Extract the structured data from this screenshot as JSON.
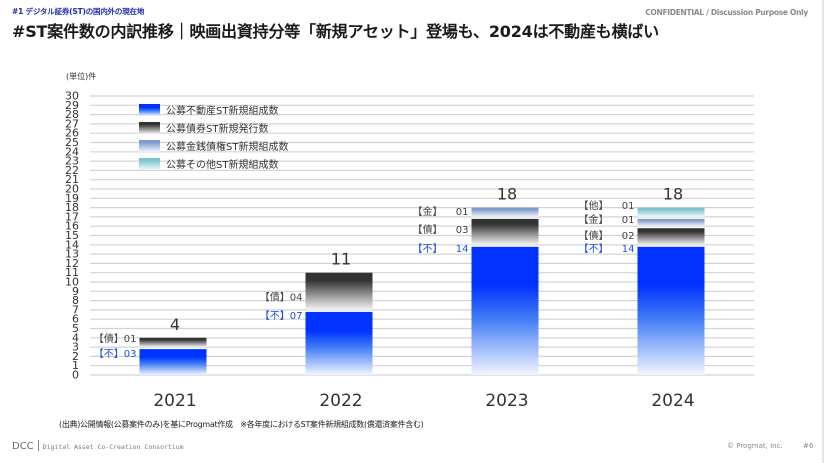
{
  "header": {
    "section_label": "#1 デジタル証券(ST)の国内外の現在地",
    "confidential": "CONFIDENTIAL / Discussion Purpose Only",
    "title": "#ST案件数の内訳推移｜映画出資持分等「新規アセット」登場も、2024は不動産も横ばい"
  },
  "chart_data": {
    "type": "bar",
    "stacked": true,
    "title": "",
    "ylabel": "(単位)件",
    "xlabel": "",
    "ylim": [
      0,
      30
    ],
    "yticks": [
      0,
      1,
      2,
      3,
      4,
      5,
      6,
      7,
      8,
      9,
      10,
      11,
      12,
      13,
      14,
      15,
      16,
      17,
      18,
      19,
      20,
      21,
      22,
      23,
      24,
      25,
      26,
      27,
      28,
      29,
      30
    ],
    "grid": true,
    "legend_position": "top-left",
    "categories": [
      "2021",
      "2022",
      "2023",
      "2024"
    ],
    "totals": [
      4,
      11,
      18,
      18
    ],
    "series": [
      {
        "name": "公募不動産ST新規組成数",
        "short": "【不】",
        "values": [
          3,
          7,
          14,
          14
        ],
        "labels": [
          "03",
          "07",
          "14",
          "14"
        ],
        "color_top": "#0033ff",
        "color_bottom": "#f2f5ff",
        "label_color": "#1f4fe0"
      },
      {
        "name": "公募債券ST新規発行数",
        "short": "【債】",
        "values": [
          1,
          4,
          3,
          2
        ],
        "labels": [
          "01",
          "04",
          "03",
          "02"
        ],
        "color_top": "#333333",
        "color_bottom": "#f4f4f4",
        "label_color": "#444444"
      },
      {
        "name": "公募金銭債権ST新規組成数",
        "short": "【金】",
        "values": [
          0,
          0,
          1,
          1
        ],
        "labels": [
          "",
          "",
          "01",
          "01"
        ],
        "color_top": "#7d9ccc",
        "color_bottom": "#f2f5fb",
        "label_color": "#444444"
      },
      {
        "name": "公募その他ST新規組成数",
        "short": "【他】",
        "values": [
          0,
          0,
          0,
          1
        ],
        "labels": [
          "",
          "",
          "",
          "01"
        ],
        "color_top": "#7ec3d0",
        "color_bottom": "#f2fafb",
        "label_color": "#444444"
      }
    ]
  },
  "footer": {
    "source_note": "(出典)公開情報(公募案件のみ)を基にProgmat作成　※各年度におけるST案件新規組成数(償還済案件含む)",
    "logo_dcc": "DCC",
    "logo_consortium": "Digital Asset Co-Creation Consortium",
    "copyright": "© Progmat, Inc.",
    "page_number": "#6"
  }
}
